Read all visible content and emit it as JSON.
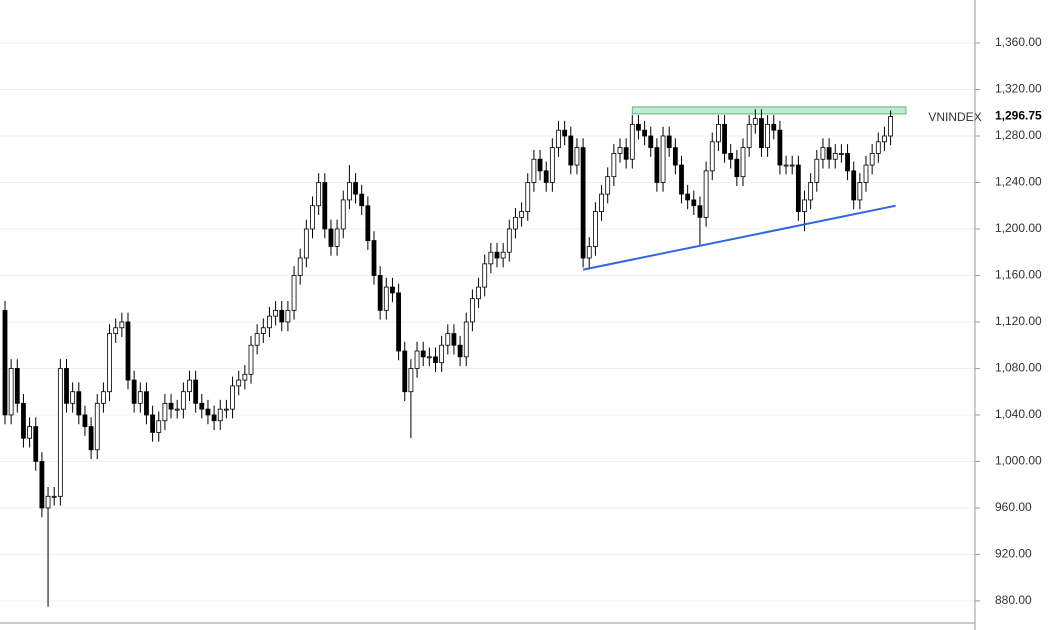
{
  "chart_data": {
    "type": "candlestick",
    "title": "VNINDEX",
    "open": [
      1130,
      1040,
      1080,
      1050,
      1020,
      1030,
      1000,
      960,
      970,
      970,
      1080,
      1050,
      1060,
      1040,
      1030,
      1010,
      1050,
      1060,
      1110,
      1115,
      1120,
      1070,
      1050,
      1060,
      1040,
      1025,
      1035,
      1050,
      1045,
      1045,
      1060,
      1070,
      1050,
      1045,
      1040,
      1035,
      1045,
      1045,
      1065,
      1070,
      1075,
      1100,
      1110,
      1115,
      1125,
      1130,
      1120,
      1130,
      1160,
      1175,
      1200,
      1220,
      1240,
      1200,
      1185,
      1200,
      1225,
      1240,
      1230,
      1220,
      1190,
      1160,
      1130,
      1150,
      1145,
      1095,
      1060,
      1080,
      1095,
      1090,
      1090,
      1085,
      1100,
      1110,
      1100,
      1090,
      1120,
      1140,
      1150,
      1170,
      1180,
      1175,
      1180,
      1200,
      1210,
      1215,
      1240,
      1260,
      1250,
      1240,
      1270,
      1285,
      1280,
      1255,
      1270,
      1175,
      1185,
      1215,
      1230,
      1245,
      1265,
      1270,
      1260,
      1290,
      1285,
      1280,
      1270,
      1240,
      1280,
      1270,
      1255,
      1230,
      1225,
      1220,
      1210,
      1250,
      1275,
      1290,
      1265,
      1260,
      1245,
      1270,
      1290,
      1295,
      1270,
      1290,
      1285,
      1255,
      1255,
      1255,
      1215,
      1225,
      1240,
      1260,
      1270,
      1260,
      1265,
      1265,
      1250,
      1225,
      1240,
      1255,
      1265,
      1275,
      1280
    ],
    "high": [
      1138,
      1088,
      1088,
      1058,
      1038,
      1038,
      1008,
      978,
      978,
      1088,
      1088,
      1068,
      1068,
      1048,
      1038,
      1058,
      1068,
      1118,
      1123,
      1128,
      1128,
      1078,
      1068,
      1068,
      1048,
      1043,
      1058,
      1058,
      1053,
      1068,
      1078,
      1078,
      1058,
      1053,
      1048,
      1053,
      1053,
      1073,
      1078,
      1083,
      1108,
      1118,
      1123,
      1133,
      1138,
      1138,
      1138,
      1168,
      1183,
      1208,
      1228,
      1248,
      1248,
      1208,
      1208,
      1233,
      1255,
      1248,
      1238,
      1228,
      1198,
      1168,
      1158,
      1158,
      1153,
      1103,
      1088,
      1103,
      1103,
      1098,
      1098,
      1108,
      1118,
      1118,
      1108,
      1128,
      1148,
      1158,
      1178,
      1188,
      1188,
      1188,
      1208,
      1218,
      1223,
      1248,
      1268,
      1268,
      1258,
      1278,
      1293,
      1293,
      1288,
      1278,
      1278,
      1193,
      1223,
      1238,
      1253,
      1273,
      1278,
      1278,
      1298,
      1298,
      1293,
      1288,
      1278,
      1288,
      1288,
      1278,
      1263,
      1238,
      1233,
      1228,
      1258,
      1283,
      1298,
      1298,
      1273,
      1268,
      1278,
      1298,
      1303,
      1303,
      1298,
      1298,
      1293,
      1263,
      1263,
      1263,
      1233,
      1248,
      1268,
      1278,
      1278,
      1273,
      1273,
      1273,
      1258,
      1248,
      1263,
      1273,
      1283,
      1288,
      1302
    ],
    "low": [
      1032,
      1032,
      1042,
      1012,
      1012,
      992,
      952,
      875,
      962,
      962,
      1042,
      1042,
      1032,
      1022,
      1002,
      1002,
      1042,
      1052,
      1102,
      1107,
      1062,
      1042,
      1042,
      1032,
      1017,
      1017,
      1027,
      1037,
      1037,
      1037,
      1052,
      1042,
      1037,
      1032,
      1027,
      1027,
      1037,
      1037,
      1057,
      1062,
      1067,
      1092,
      1102,
      1107,
      1117,
      1112,
      1112,
      1122,
      1152,
      1167,
      1192,
      1212,
      1192,
      1177,
      1177,
      1192,
      1217,
      1222,
      1212,
      1182,
      1152,
      1122,
      1122,
      1137,
      1087,
      1052,
      1020,
      1072,
      1082,
      1082,
      1077,
      1077,
      1092,
      1092,
      1082,
      1082,
      1112,
      1132,
      1142,
      1162,
      1167,
      1167,
      1172,
      1192,
      1202,
      1207,
      1232,
      1242,
      1232,
      1232,
      1262,
      1272,
      1247,
      1247,
      1167,
      1165,
      1177,
      1207,
      1222,
      1237,
      1257,
      1252,
      1252,
      1277,
      1272,
      1262,
      1232,
      1232,
      1262,
      1247,
      1222,
      1217,
      1212,
      1185,
      1202,
      1242,
      1267,
      1257,
      1252,
      1237,
      1237,
      1262,
      1282,
      1262,
      1262,
      1277,
      1247,
      1247,
      1247,
      1207,
      1198,
      1217,
      1232,
      1252,
      1252,
      1252,
      1257,
      1242,
      1217,
      1217,
      1232,
      1247,
      1257,
      1267,
      1272
    ],
    "close": [
      1040,
      1080,
      1050,
      1020,
      1030,
      1000,
      960,
      970,
      970,
      1080,
      1050,
      1060,
      1040,
      1030,
      1010,
      1050,
      1060,
      1110,
      1115,
      1120,
      1070,
      1050,
      1060,
      1040,
      1025,
      1035,
      1050,
      1045,
      1045,
      1060,
      1070,
      1050,
      1045,
      1040,
      1035,
      1045,
      1045,
      1065,
      1070,
      1075,
      1100,
      1110,
      1115,
      1125,
      1130,
      1120,
      1130,
      1160,
      1175,
      1200,
      1220,
      1240,
      1200,
      1185,
      1200,
      1225,
      1240,
      1230,
      1220,
      1190,
      1160,
      1130,
      1150,
      1145,
      1095,
      1060,
      1080,
      1095,
      1090,
      1090,
      1085,
      1100,
      1110,
      1100,
      1090,
      1120,
      1140,
      1150,
      1170,
      1180,
      1175,
      1180,
      1200,
      1210,
      1215,
      1240,
      1260,
      1250,
      1240,
      1270,
      1285,
      1280,
      1255,
      1270,
      1175,
      1185,
      1215,
      1230,
      1245,
      1265,
      1270,
      1260,
      1290,
      1285,
      1280,
      1270,
      1240,
      1280,
      1270,
      1255,
      1230,
      1225,
      1220,
      1210,
      1250,
      1275,
      1290,
      1265,
      1260,
      1245,
      1270,
      1290,
      1295,
      1270,
      1290,
      1285,
      1255,
      1255,
      1255,
      1215,
      1225,
      1240,
      1260,
      1270,
      1260,
      1265,
      1265,
      1250,
      1225,
      1240,
      1255,
      1265,
      1275,
      1280,
      1296.75
    ],
    "last_label": "1,296.75",
    "up_color": "#ffffff",
    "down_color": "#000000",
    "ylim": [
      861,
      1397
    ],
    "yticks": [
      {
        "value": 880,
        "label": "880.00"
      },
      {
        "value": 920,
        "label": "920.00"
      },
      {
        "value": 960,
        "label": "960.00"
      },
      {
        "value": 1000,
        "label": "1,000.00"
      },
      {
        "value": 1040,
        "label": "1,040.00"
      },
      {
        "value": 1080,
        "label": "1,080.00"
      },
      {
        "value": 1120,
        "label": "1,120.00"
      },
      {
        "value": 1160,
        "label": "1,160.00"
      },
      {
        "value": 1200,
        "label": "1,200.00"
      },
      {
        "value": 1240,
        "label": "1,240.00"
      },
      {
        "value": 1280,
        "label": "1,280.00"
      },
      {
        "value": 1320,
        "label": "1,320.00"
      },
      {
        "value": 1360,
        "label": "1,360.00"
      }
    ],
    "grid": true,
    "resistance_zone": {
      "from_index": 102,
      "to_index": 146.5,
      "range": [
        1299,
        1305
      ],
      "color": "#b7e4c7"
    },
    "trendline": {
      "from": [
        94,
        1165
      ],
      "to": [
        144.8,
        1220
      ],
      "color": "#3366e6"
    }
  }
}
